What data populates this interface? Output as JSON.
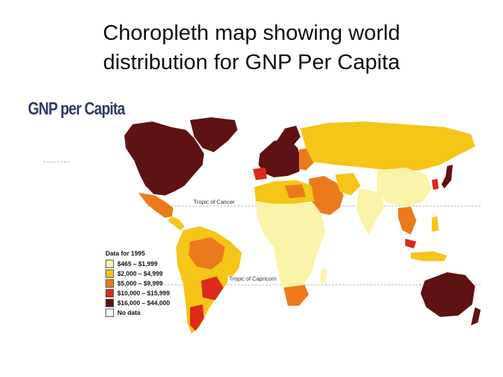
{
  "slide": {
    "title_line1": "Choropleth map showing world",
    "title_line2": "distribution for GNP Per Capita"
  },
  "map": {
    "heading": "GNP per Capita",
    "tropic_cancer_label": "Tropic of Cancer",
    "tropic_capricorn_label": "Tropic of Capricorn",
    "legend": {
      "title": "Data for 1995",
      "items": [
        {
          "label": "$465 – $1,999",
          "color": "#fbf3a8"
        },
        {
          "label": "$2,000 – $4,999",
          "color": "#f5c518"
        },
        {
          "label": "$5,000 – $9,999",
          "color": "#ec7a1c"
        },
        {
          "label": "$10,000 – $15,999",
          "color": "#dd2a1b"
        },
        {
          "label": "$16,000 – $44,000",
          "color": "#5e1212"
        },
        {
          "label": "No data",
          "color": "#ffffff"
        }
      ]
    }
  }
}
